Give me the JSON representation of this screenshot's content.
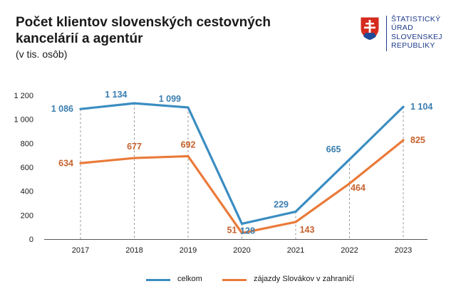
{
  "header": {
    "title": "Počet klientov slovenských cestovných kancelárií a agentúr",
    "subtitle": "(v tis. osôb)"
  },
  "logo": {
    "lines": [
      "ŠTATISTICKÝ",
      "ÚRAD",
      "SLOVENSKEJ",
      "REPUBLIKY"
    ],
    "shield_colors": {
      "red": "#d52b1e",
      "blue": "#1e4a9a",
      "white": "#ffffff"
    }
  },
  "chart_data": {
    "type": "line",
    "categories": [
      "2017",
      "2018",
      "2019",
      "2020",
      "2021",
      "2022",
      "2023"
    ],
    "y_ticks": [
      "0",
      "200",
      "400",
      "600",
      "800",
      "1 000",
      "1 200"
    ],
    "ylim": [
      0,
      1200
    ],
    "grid": false,
    "legend_position": "bottom",
    "series": [
      {
        "name": "celkom",
        "color": "#3a8dc1",
        "values": [
          1086,
          1134,
          1099,
          128,
          229,
          665,
          1104
        ],
        "labels": [
          "1 086",
          "1 134",
          "1 099",
          "128",
          "229",
          "665",
          "1 104"
        ]
      },
      {
        "name": "zájazdy Slovákov v zahraničí",
        "color": "#ea7a3a",
        "values": [
          634,
          677,
          692,
          51,
          143,
          464,
          825
        ],
        "labels": [
          "634",
          "677",
          "692",
          "51",
          "143",
          "464",
          "825"
        ]
      }
    ],
    "label_colors": [
      "#3a7eb0",
      "#c6622e"
    ]
  }
}
